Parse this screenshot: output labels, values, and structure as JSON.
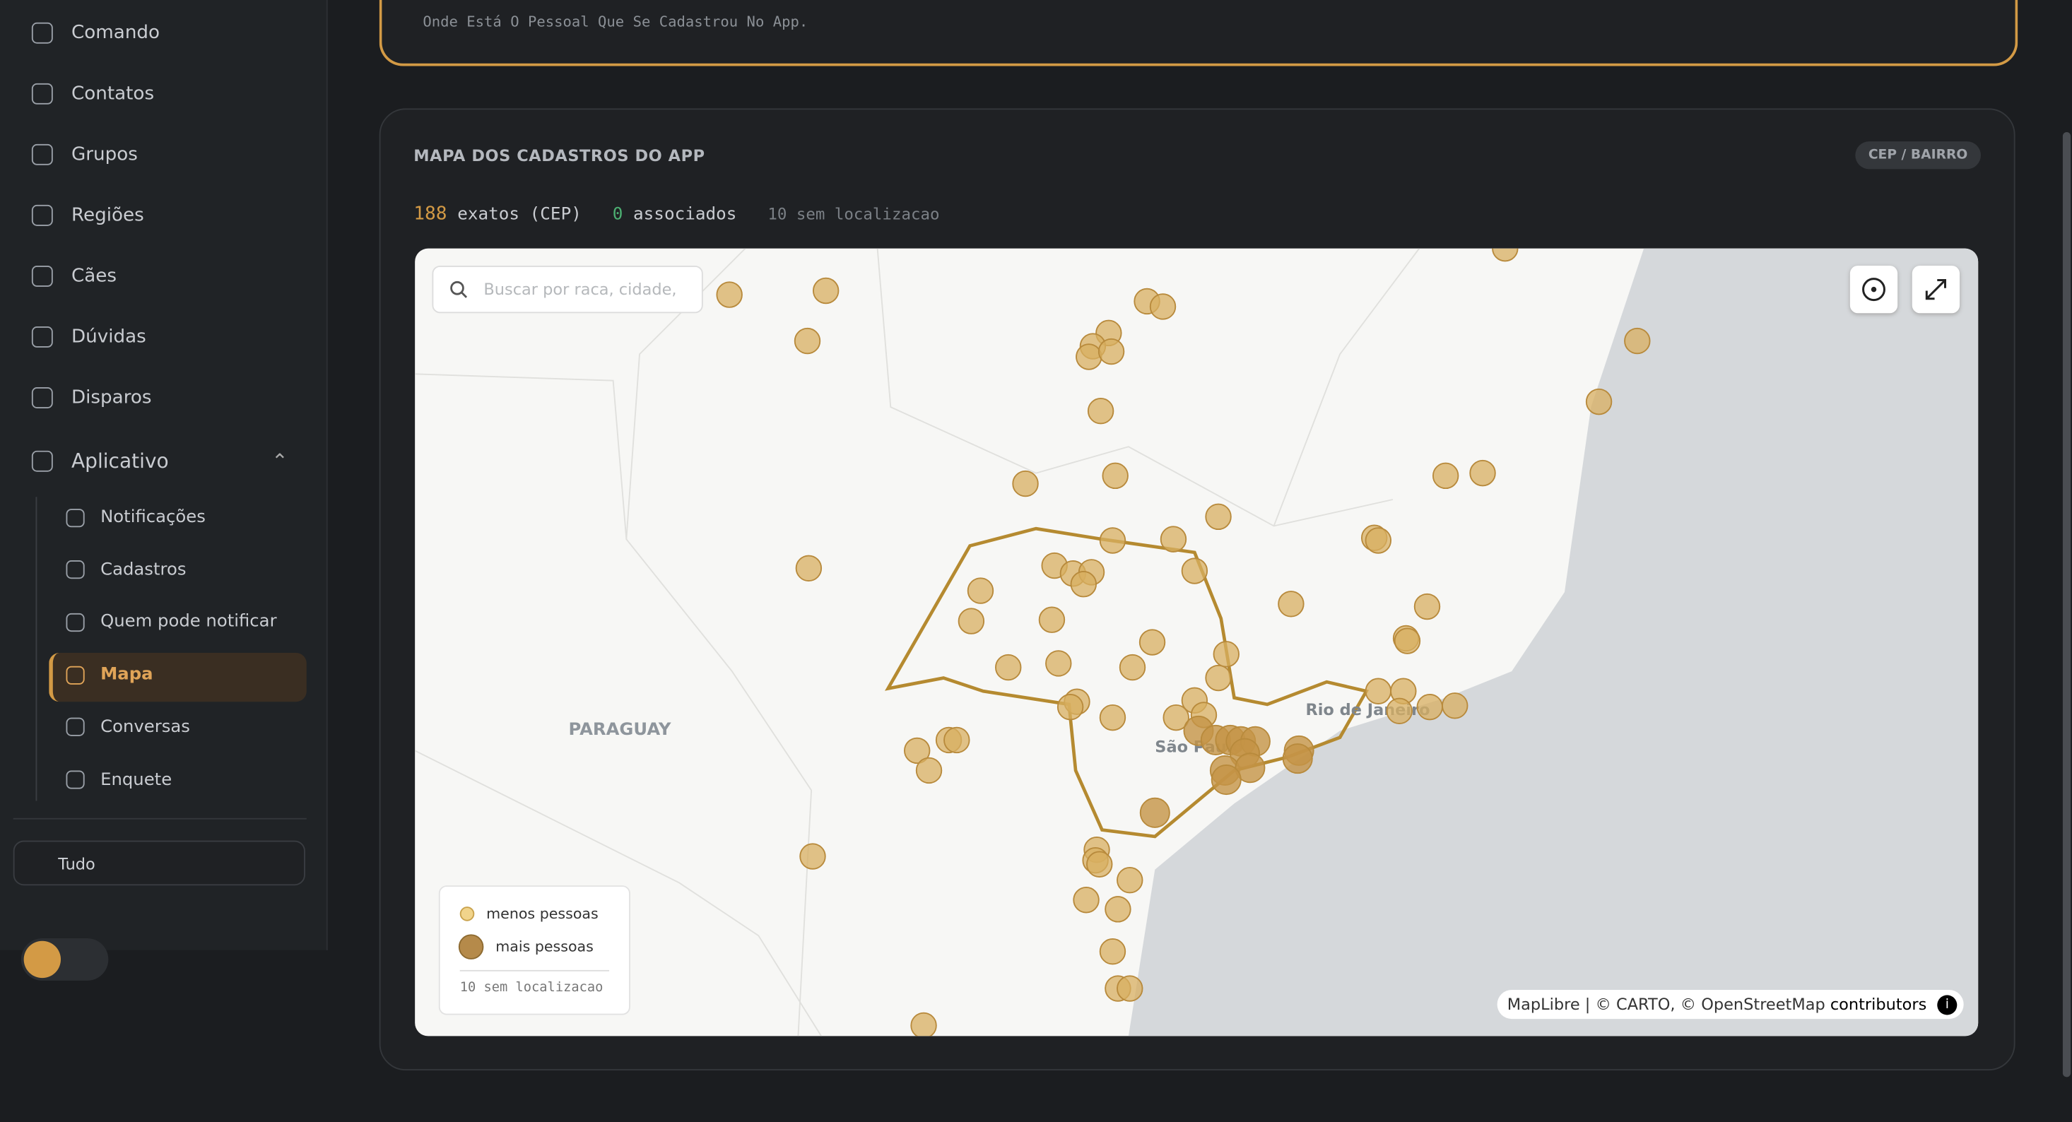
{
  "header": {
    "subtitle": "Onde Está O Pessoal Que Se Cadastrou No App."
  },
  "sidebar": {
    "items": [
      "Comando",
      "Contatos",
      "Grupos",
      "Regiões",
      "Cães",
      "Dúvidas",
      "Disparos"
    ],
    "group": "Aplicativo",
    "subitems": [
      "Notificações",
      "Cadastros",
      "Quem pode notificar",
      "Mapa",
      "Conversas",
      "Enquete"
    ],
    "active": "Mapa",
    "period": "Tudo"
  },
  "card": {
    "title": "MAPA DOS CADASTROS DO APP",
    "badge": "CEP / BAIRRO",
    "stats": {
      "exact": 188,
      "exact_label": "exatos (CEP)",
      "associated": 0,
      "associated_label": "associados",
      "missing": "10 sem localizacao"
    }
  },
  "map": {
    "search_placeholder": "Buscar por raca, cidade,",
    "labels": [
      "PARAGUAY",
      "Rio de Janeiro",
      "São Paulo"
    ],
    "legend": {
      "low": "menos pessoas",
      "high": "mais pessoas",
      "missing": "10 sem localizacao"
    },
    "attribution": "MapLibre | © CARTO, © OpenStreetMap",
    "attribution_link": "contributors"
  }
}
